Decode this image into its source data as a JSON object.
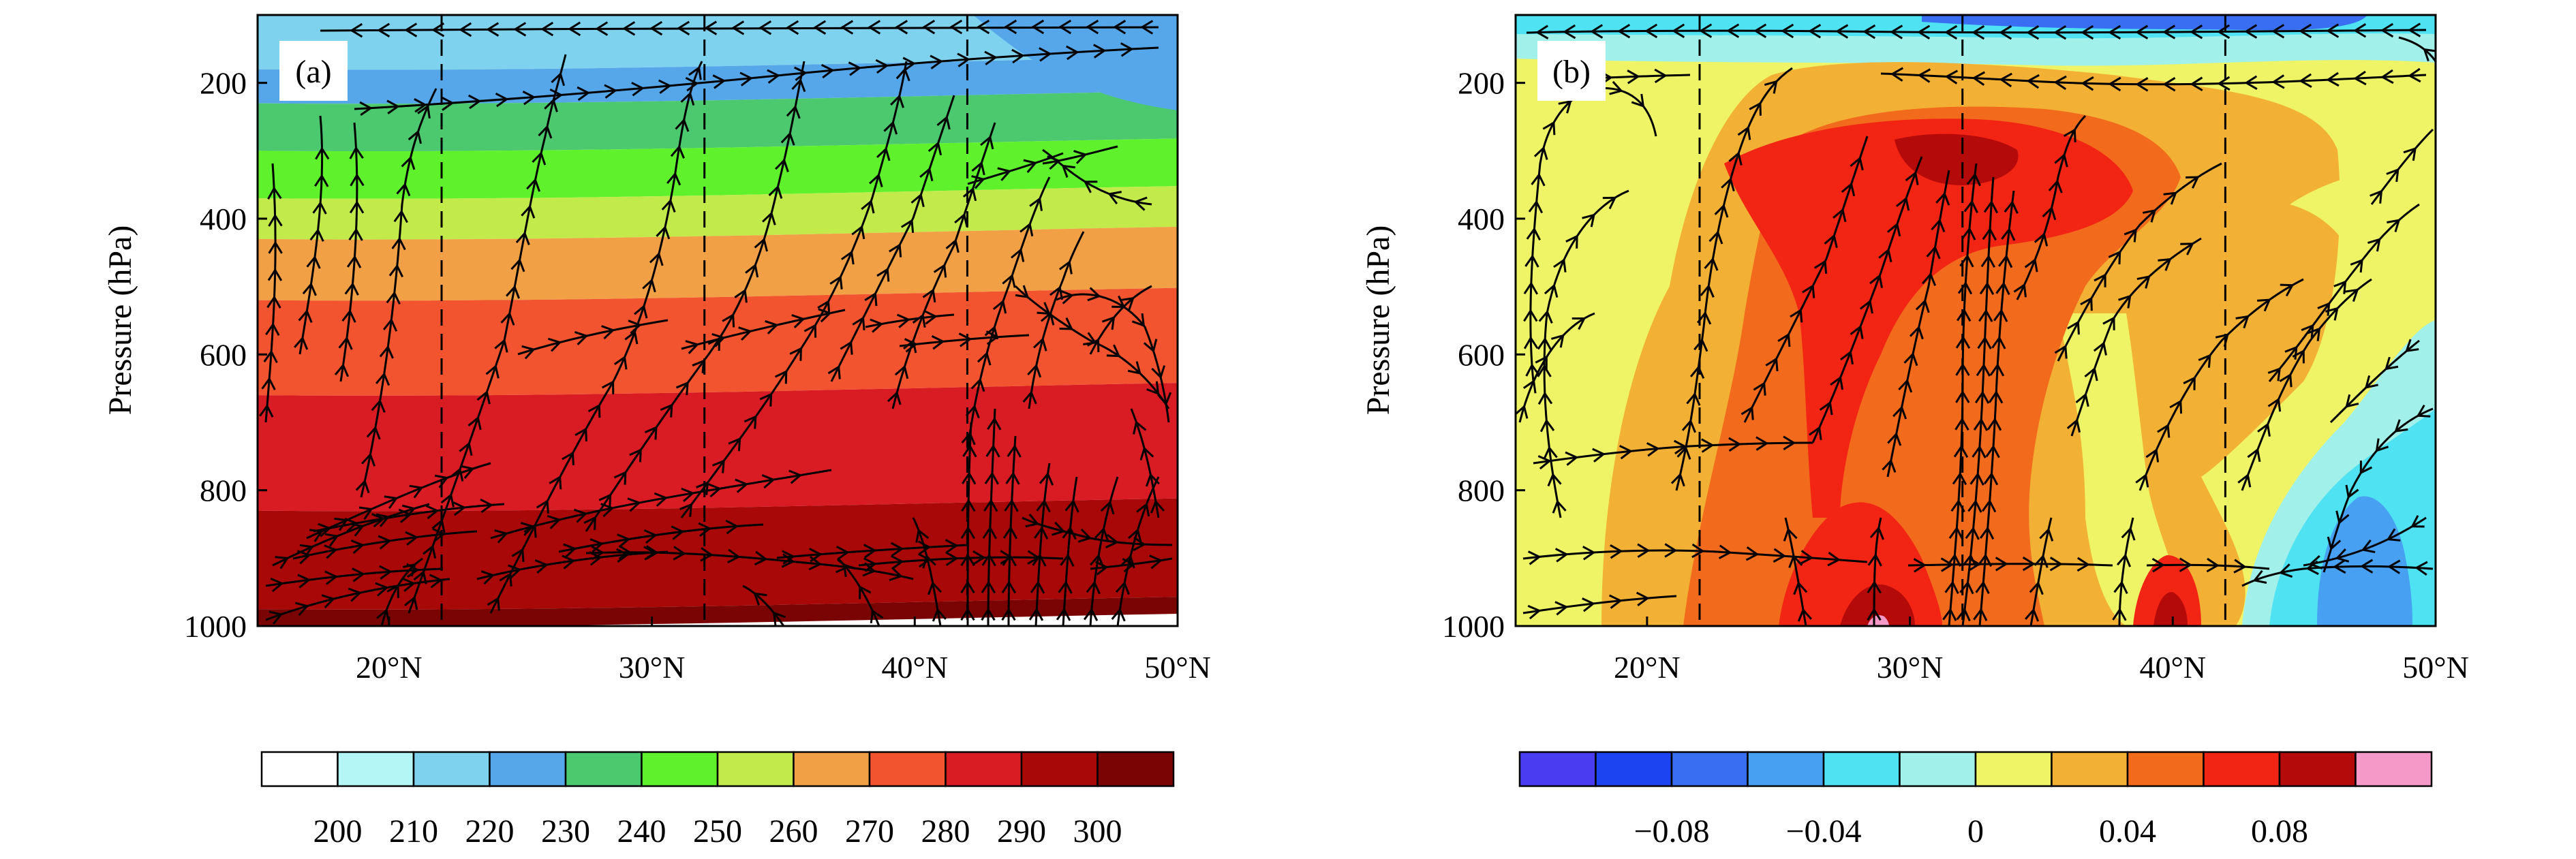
{
  "chart_data": [
    {
      "type": "contour",
      "panel_label": "(a)",
      "description_units": "shaded field with streamlines",
      "xlabel": "",
      "ylabel": "Pressure (hPa)",
      "xlim": [
        15,
        50
      ],
      "ylim": [
        1000,
        100
      ],
      "x_ticks": [
        20,
        30,
        40,
        50
      ],
      "x_tick_labels": [
        "20°N",
        "30°N",
        "40°N",
        "50°N"
      ],
      "y_ticks": [
        200,
        400,
        600,
        800,
        1000
      ],
      "y_tick_labels": [
        "200",
        "400",
        "600",
        "800",
        "1000"
      ],
      "dashed_lines_x": [
        22,
        32,
        42
      ],
      "colorbar": {
        "levels": [
          200,
          210,
          220,
          230,
          240,
          250,
          260,
          270,
          280,
          290,
          300
        ],
        "labels": [
          "200",
          "210",
          "220",
          "230",
          "240",
          "250",
          "260",
          "270",
          "280",
          "290",
          "300"
        ],
        "colors": [
          "#ffffff",
          "#b4f5f5",
          "#7fd2ee",
          "#56a7ea",
          "#4cc86e",
          "#5ff22c",
          "#c2ea4a",
          "#f2a046",
          "#f2542f",
          "#d91c24",
          "#a80808",
          "#7a0404"
        ]
      },
      "bands": [
        {
          "top": 100,
          "bottom": 180,
          "color": "#7fd2ee"
        },
        {
          "top": 180,
          "bottom": 230,
          "color": "#56a7ea"
        },
        {
          "top": 230,
          "bottom": 300,
          "color": "#4cc86e"
        },
        {
          "top": 300,
          "bottom": 370,
          "color": "#5ff22c"
        },
        {
          "top": 370,
          "bottom": 430,
          "color": "#c2ea4a"
        },
        {
          "top": 430,
          "bottom": 520,
          "color": "#f2a046"
        },
        {
          "top": 520,
          "bottom": 660,
          "color": "#f2542f"
        },
        {
          "top": 660,
          "bottom": 830,
          "color": "#d91c24"
        },
        {
          "top": 830,
          "bottom": 975,
          "color": "#a80808"
        },
        {
          "top": 975,
          "bottom": 1000,
          "color": "#7a0404"
        }
      ]
    },
    {
      "type": "contour",
      "panel_label": "(b)",
      "description_units": "shaded field with streamlines",
      "xlabel": "",
      "ylabel": "Pressure (hPa)",
      "xlim": [
        15,
        50
      ],
      "ylim": [
        1000,
        100
      ],
      "x_ticks": [
        20,
        30,
        40,
        50
      ],
      "x_tick_labels": [
        "20°N",
        "30°N",
        "40°N",
        "50°N"
      ],
      "y_ticks": [
        200,
        400,
        600,
        800,
        1000
      ],
      "y_tick_labels": [
        "200",
        "400",
        "600",
        "800",
        "1000"
      ],
      "dashed_lines_x": [
        22,
        32,
        42
      ],
      "colorbar": {
        "levels": [
          -0.08,
          -0.04,
          0,
          0.04,
          0.08
        ],
        "labels": [
          "−0.08",
          "−0.04",
          "0",
          "0.04",
          "0.08"
        ],
        "colors": [
          "#4a3cf0",
          "#1c44f0",
          "#3a6ef2",
          "#47a0f2",
          "#4ee2f2",
          "#a2f0ea",
          "#eef466",
          "#f2b034",
          "#f26a1c",
          "#f22414",
          "#b40a0a",
          "#f59ac8"
        ]
      }
    }
  ]
}
